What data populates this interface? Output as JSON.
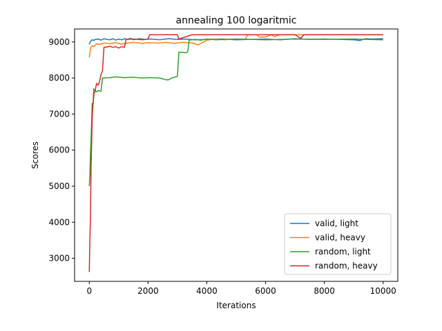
{
  "chart_data": {
    "type": "line",
    "title": "annealing 100 logaritmic",
    "xlabel": "Iterations",
    "ylabel": "Scores",
    "xlim": [
      -500,
      10500
    ],
    "ylim": [
      2360,
      9360
    ],
    "xticks": [
      0,
      2000,
      4000,
      6000,
      8000,
      10000
    ],
    "yticks": [
      3000,
      4000,
      5000,
      6000,
      7000,
      8000,
      9000
    ],
    "grid": false,
    "legend_position": "lower-right",
    "series": [
      {
        "name": "valid, light",
        "color": "#1f77b4",
        "x": [
          0,
          30,
          60,
          100,
          150,
          200,
          300,
          400,
          500,
          600,
          700,
          800,
          900,
          1000,
          1100,
          1200,
          1300,
          1400,
          1500,
          1700,
          1900,
          2100,
          2400,
          2700,
          3000,
          3300,
          3600,
          4000,
          4500,
          5000,
          5500,
          6000,
          6500,
          7000,
          7500,
          8000,
          8500,
          9000,
          9200,
          9400,
          9600,
          10000
        ],
        "y": [
          8930,
          9000,
          9030,
          9060,
          9040,
          9070,
          9080,
          9050,
          9090,
          9070,
          9060,
          9090,
          9050,
          9080,
          9060,
          9090,
          9070,
          9100,
          9060,
          9090,
          9070,
          9080,
          9060,
          9090,
          9070,
          9080,
          9060,
          9070,
          9080,
          9060,
          9070,
          9080,
          9060,
          9090,
          9070,
          9080,
          9070,
          9060,
          9040,
          9090,
          9080,
          9090
        ]
      },
      {
        "name": "valid, heavy",
        "color": "#ff7f0e",
        "x": [
          0,
          20,
          50,
          100,
          150,
          250,
          350,
          500,
          700,
          900,
          1100,
          1300,
          1500,
          1800,
          2000,
          2300,
          2600,
          2900,
          3200,
          3500,
          3700,
          3900,
          4000,
          4300,
          4600,
          5000,
          5300,
          5400,
          5700,
          5800,
          6000,
          6200,
          6300,
          6500,
          7000,
          8000,
          9000,
          10000
        ],
        "y": [
          8570,
          8700,
          8850,
          8900,
          8870,
          8950,
          8930,
          8970,
          8950,
          8980,
          8940,
          8970,
          8990,
          8960,
          8980,
          8970,
          8990,
          8960,
          8990,
          8970,
          8920,
          9000,
          9050,
          9080,
          9060,
          9080,
          9070,
          9200,
          9200,
          9130,
          9140,
          9200,
          9150,
          9200,
          9200,
          9200,
          9200,
          9200
        ]
      },
      {
        "name": "random, light",
        "color": "#2ca02c",
        "x": [
          0,
          20,
          40,
          60,
          80,
          100,
          130,
          150,
          200,
          250,
          300,
          400,
          450,
          500,
          700,
          900,
          1200,
          1500,
          1800,
          2100,
          2400,
          2600,
          2700,
          2800,
          2900,
          3000,
          3050,
          3300,
          3350,
          3400,
          3600,
          3800,
          4000,
          4300,
          4600,
          5000,
          6000,
          7000,
          8000,
          9000,
          10000
        ],
        "y": [
          5000,
          5300,
          5900,
          6300,
          6800,
          7300,
          7250,
          7700,
          7650,
          7620,
          7650,
          7630,
          8000,
          8000,
          8010,
          8030,
          8010,
          8020,
          8000,
          8010,
          8000,
          7950,
          7950,
          8000,
          8020,
          8050,
          8720,
          8700,
          8730,
          9050,
          9070,
          9050,
          9080,
          9060,
          9070,
          9080,
          9060,
          9080,
          9070,
          9080,
          9060
        ]
      },
      {
        "name": "random, heavy",
        "color": "#d62728",
        "x": [
          0,
          20,
          40,
          60,
          80,
          100,
          130,
          160,
          200,
          250,
          300,
          350,
          400,
          450,
          500,
          600,
          700,
          800,
          900,
          1000,
          1100,
          1200,
          1250,
          1500,
          1800,
          2000,
          2050,
          2500,
          3000,
          3050,
          3500,
          4000,
          5000,
          6000,
          7000,
          7200,
          7300,
          8000,
          9000,
          10000
        ],
        "y": [
          2620,
          3500,
          4100,
          5500,
          6200,
          6900,
          7300,
          7550,
          7650,
          7850,
          7800,
          7900,
          8100,
          8200,
          8850,
          8860,
          8880,
          8850,
          8870,
          8830,
          8870,
          8850,
          9070,
          9080,
          9060,
          9080,
          9200,
          9200,
          9200,
          9080,
          9200,
          9200,
          9200,
          9200,
          9200,
          9100,
          9200,
          9200,
          9200,
          9200
        ]
      }
    ]
  }
}
